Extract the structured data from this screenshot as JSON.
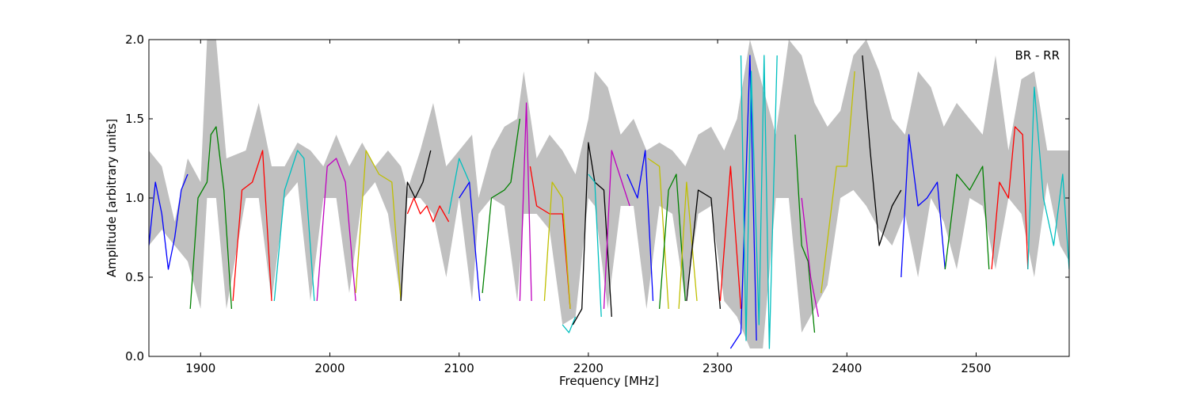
{
  "chart_data": {
    "type": "line",
    "annotation": "BR - RR",
    "xlabel": "Frequency [MHz]",
    "ylabel": "Amplitude [arbitrary units]",
    "xlim": [
      1860,
      2572
    ],
    "ylim": [
      0.0,
      2.0
    ],
    "x_ticks": [
      1900,
      2000,
      2100,
      2200,
      2300,
      2400,
      2500
    ],
    "y_ticks": [
      0.0,
      0.5,
      1.0,
      1.5,
      2.0
    ],
    "x_tick_labels": [
      "1900",
      "2000",
      "2100",
      "2200",
      "2300",
      "2400",
      "2500"
    ],
    "y_tick_labels": [
      "0.0",
      "0.5",
      "1.0",
      "1.5",
      "2.0"
    ],
    "grid": false,
    "legend": "none",
    "background_band": {
      "color": "#c0c0c0",
      "x": [
        1860,
        1870,
        1880,
        1890,
        1900,
        1905,
        1912,
        1920,
        1935,
        1945,
        1955,
        1965,
        1975,
        1985,
        1995,
        2005,
        2015,
        2025,
        2035,
        2045,
        2055,
        2060,
        2070,
        2080,
        2090,
        2100,
        2110,
        2115,
        2125,
        2135,
        2145,
        2150,
        2160,
        2170,
        2180,
        2190,
        2200,
        2205,
        2215,
        2225,
        2235,
        2245,
        2255,
        2265,
        2275,
        2285,
        2295,
        2305,
        2315,
        2325,
        2335,
        2345,
        2355,
        2365,
        2375,
        2385,
        2395,
        2405,
        2415,
        2425,
        2435,
        2445,
        2455,
        2465,
        2475,
        2485,
        2495,
        2505,
        2515,
        2525,
        2535,
        2545,
        2555,
        2565,
        2572
      ],
      "upper": [
        1.3,
        1.2,
        0.85,
        1.25,
        1.1,
        2.0,
        2.0,
        1.25,
        1.3,
        1.6,
        1.2,
        1.2,
        1.35,
        1.3,
        1.2,
        1.4,
        1.2,
        1.35,
        1.2,
        1.3,
        1.2,
        1.05,
        1.3,
        1.6,
        1.2,
        1.3,
        1.4,
        1.0,
        1.3,
        1.45,
        1.5,
        1.8,
        1.25,
        1.4,
        1.3,
        1.15,
        1.5,
        1.8,
        1.7,
        1.4,
        1.5,
        1.3,
        1.35,
        1.3,
        1.2,
        1.4,
        1.45,
        1.3,
        1.5,
        2.0,
        1.7,
        1.4,
        2.0,
        1.9,
        1.6,
        1.45,
        1.55,
        1.9,
        2.0,
        1.8,
        1.5,
        1.4,
        1.8,
        1.7,
        1.45,
        1.6,
        1.5,
        1.4,
        1.9,
        1.3,
        1.75,
        1.8,
        1.3,
        1.3,
        1.3
      ],
      "lower": [
        0.7,
        0.8,
        0.7,
        0.6,
        0.3,
        1.0,
        1.0,
        0.3,
        1.0,
        1.0,
        0.35,
        1.0,
        1.1,
        0.35,
        1.0,
        1.0,
        0.4,
        1.0,
        1.1,
        0.9,
        0.35,
        1.0,
        1.0,
        0.9,
        0.5,
        1.0,
        0.35,
        0.9,
        1.0,
        0.95,
        0.35,
        0.9,
        0.9,
        0.8,
        0.2,
        0.25,
        1.0,
        0.95,
        0.3,
        0.95,
        0.95,
        0.3,
        0.95,
        0.9,
        0.35,
        0.9,
        0.95,
        0.35,
        0.25,
        0.05,
        0.05,
        1.0,
        1.0,
        0.15,
        0.3,
        0.45,
        1.0,
        1.05,
        0.95,
        0.8,
        0.7,
        0.9,
        0.5,
        1.0,
        0.85,
        0.55,
        1.0,
        0.95,
        0.55,
        1.0,
        0.9,
        0.5,
        1.1,
        0.7,
        0.6
      ]
    },
    "segments": [
      {
        "color": "#0000ff",
        "x": [
          1860,
          1865,
          1870,
          1875,
          1880,
          1885,
          1890
        ],
        "y": [
          0.7,
          1.1,
          0.9,
          0.55,
          0.75,
          1.05,
          1.15
        ]
      },
      {
        "color": "#008000",
        "x": [
          1892,
          1898,
          1905,
          1908,
          1912,
          1918,
          1924
        ],
        "y": [
          0.3,
          1.0,
          1.1,
          1.4,
          1.45,
          1.05,
          0.3
        ]
      },
      {
        "color": "#ff0000",
        "x": [
          1925,
          1932,
          1940,
          1948,
          1955
        ],
        "y": [
          0.35,
          1.05,
          1.1,
          1.3,
          0.35
        ]
      },
      {
        "color": "#00bfbf",
        "x": [
          1957,
          1965,
          1975,
          1980,
          1988
        ],
        "y": [
          0.35,
          1.05,
          1.3,
          1.25,
          0.35
        ]
      },
      {
        "color": "#bf00bf",
        "x": [
          1990,
          1998,
          2005,
          2012,
          2020
        ],
        "y": [
          0.35,
          1.2,
          1.25,
          1.1,
          0.35
        ]
      },
      {
        "color": "#bfbf00",
        "x": [
          2020,
          2028,
          2038,
          2048,
          2055
        ],
        "y": [
          0.4,
          1.3,
          1.15,
          1.1,
          0.35
        ]
      },
      {
        "color": "#000000",
        "x": [
          2055,
          2060,
          2066,
          2072,
          2078
        ],
        "y": [
          0.35,
          1.1,
          1.0,
          1.1,
          1.3
        ]
      },
      {
        "color": "#ff0000",
        "x": [
          2060,
          2065,
          2070,
          2075,
          2080,
          2085,
          2092
        ],
        "y": [
          0.9,
          1.0,
          0.9,
          0.95,
          0.85,
          0.95,
          0.85
        ]
      },
      {
        "color": "#00bfbf",
        "x": [
          2092,
          2100,
          2108
        ],
        "y": [
          0.9,
          1.25,
          1.1
        ]
      },
      {
        "color": "#0000ff",
        "x": [
          2100,
          2108,
          2116
        ],
        "y": [
          1.0,
          1.1,
          0.35
        ]
      },
      {
        "color": "#008000",
        "x": [
          2118,
          2125,
          2135,
          2140,
          2147
        ],
        "y": [
          0.4,
          1.0,
          1.05,
          1.1,
          1.5
        ]
      },
      {
        "color": "#bf00bf",
        "x": [
          2147,
          2152,
          2156
        ],
        "y": [
          0.35,
          1.6,
          0.35
        ]
      },
      {
        "color": "#ff0000",
        "x": [
          2155,
          2160,
          2170,
          2180,
          2186
        ],
        "y": [
          1.2,
          0.95,
          0.9,
          0.9,
          0.3
        ]
      },
      {
        "color": "#bfbf00",
        "x": [
          2166,
          2172,
          2180,
          2186
        ],
        "y": [
          0.35,
          1.1,
          1.0,
          0.3
        ]
      },
      {
        "color": "#00bfbf",
        "x": [
          2180,
          2185,
          2190
        ],
        "y": [
          0.2,
          0.15,
          0.25
        ]
      },
      {
        "color": "#000000",
        "x": [
          2188,
          2195,
          2200,
          2205,
          2212,
          2218
        ],
        "y": [
          0.2,
          0.3,
          1.35,
          1.1,
          1.05,
          0.25
        ]
      },
      {
        "color": "#00bfbf",
        "x": [
          2200,
          2205,
          2210
        ],
        "y": [
          1.15,
          1.1,
          0.25
        ]
      },
      {
        "color": "#bf00bf",
        "x": [
          2212,
          2218,
          2226,
          2232
        ],
        "y": [
          0.3,
          1.3,
          1.1,
          0.95
        ]
      },
      {
        "color": "#0000ff",
        "x": [
          2230,
          2238,
          2244,
          2250
        ],
        "y": [
          1.15,
          1.0,
          1.3,
          0.35
        ]
      },
      {
        "color": "#bfbf00",
        "x": [
          2246,
          2255,
          2262
        ],
        "y": [
          1.25,
          1.2,
          0.3
        ]
      },
      {
        "color": "#008000",
        "x": [
          2255,
          2262,
          2268,
          2275
        ],
        "y": [
          0.3,
          1.05,
          1.15,
          0.35
        ]
      },
      {
        "color": "#bfbf00",
        "x": [
          2270,
          2276,
          2284
        ],
        "y": [
          0.3,
          1.1,
          0.35
        ]
      },
      {
        "color": "#000000",
        "x": [
          2276,
          2285,
          2295,
          2302
        ],
        "y": [
          0.35,
          1.05,
          1.0,
          0.3
        ]
      },
      {
        "color": "#ff0000",
        "x": [
          2302,
          2310,
          2318
        ],
        "y": [
          0.35,
          1.2,
          0.3
        ]
      },
      {
        "color": "#0000ff",
        "x": [
          2310,
          2318,
          2325,
          2330
        ],
        "y": [
          0.05,
          0.15,
          1.9,
          0.1
        ]
      },
      {
        "color": "#00bfbf",
        "x": [
          2318,
          2322,
          2326,
          2332,
          2336,
          2340,
          2346
        ],
        "y": [
          1.9,
          0.1,
          1.8,
          0.2,
          1.9,
          0.05,
          1.9
        ]
      },
      {
        "color": "#008000",
        "x": [
          2360,
          2365,
          2370,
          2375
        ],
        "y": [
          1.4,
          0.7,
          0.6,
          0.15
        ]
      },
      {
        "color": "#bf00bf",
        "x": [
          2365,
          2372,
          2378
        ],
        "y": [
          1.0,
          0.5,
          0.25
        ]
      },
      {
        "color": "#bfbf00",
        "x": [
          2380,
          2392,
          2400,
          2406
        ],
        "y": [
          0.4,
          1.2,
          1.2,
          1.8
        ]
      },
      {
        "color": "#000000",
        "x": [
          2412,
          2418,
          2425,
          2435,
          2442
        ],
        "y": [
          1.9,
          1.3,
          0.7,
          0.95,
          1.05
        ]
      },
      {
        "color": "#0000ff",
        "x": [
          2442,
          2448,
          2455,
          2462,
          2470,
          2476
        ],
        "y": [
          0.5,
          1.4,
          0.95,
          1.0,
          1.1,
          0.55
        ]
      },
      {
        "color": "#008000",
        "x": [
          2476,
          2485,
          2495,
          2505,
          2510
        ],
        "y": [
          0.55,
          1.15,
          1.05,
          1.2,
          0.55
        ]
      },
      {
        "color": "#ff0000",
        "x": [
          2512,
          2518,
          2525,
          2530,
          2536,
          2540
        ],
        "y": [
          0.55,
          1.1,
          1.0,
          1.45,
          1.4,
          0.55
        ]
      },
      {
        "color": "#00bfbf",
        "x": [
          2540,
          2545,
          2552,
          2560,
          2567,
          2572
        ],
        "y": [
          0.55,
          1.7,
          1.0,
          0.7,
          1.15,
          0.55
        ]
      }
    ]
  }
}
